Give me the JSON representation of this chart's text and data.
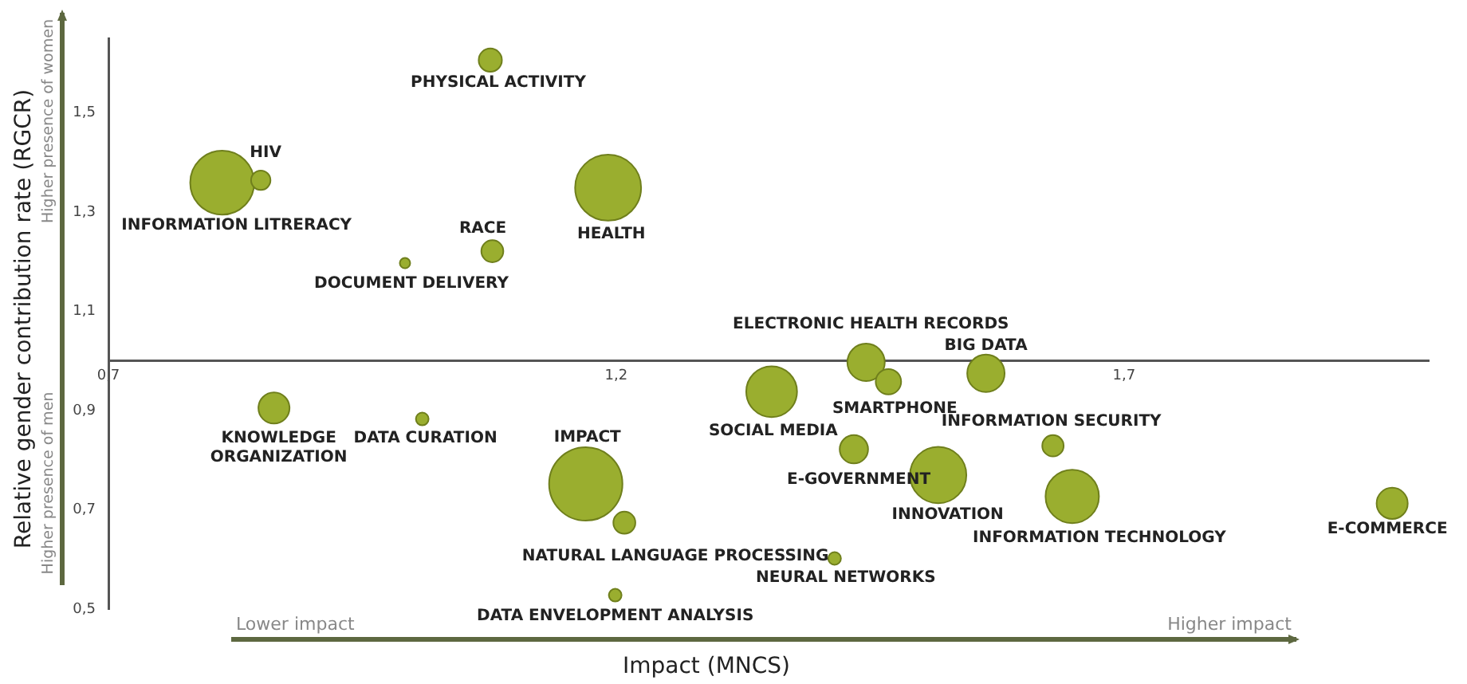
{
  "chart_data": {
    "type": "bubble",
    "xlabel": "Impact (MNCS)",
    "ylabel": "Relative gender contribution rate (RGCR)",
    "x": [
      1.076,
      0.812,
      0.85,
      1.192,
      1.078,
      0.992,
      1.446,
      1.468,
      1.564,
      1.353,
      1.434,
      1.63,
      1.517,
      1.649,
      1.964,
      1.415,
      0.863,
      1.009,
      1.17,
      1.208,
      1.199
    ],
    "values": [
      1.606,
      1.359,
      1.364,
      1.349,
      1.221,
      1.197,
      0.997,
      0.958,
      0.975,
      0.938,
      0.822,
      0.829,
      0.77,
      0.727,
      0.713,
      0.602,
      0.905,
      0.883,
      0.752,
      0.674,
      0.528
    ],
    "sizes": [
      0.1,
      0.76,
      0.07,
      0.81,
      0.09,
      0.02,
      0.26,
      0.12,
      0.26,
      0.48,
      0.15,
      0.085,
      0.59,
      0.53,
      0.18,
      0.03,
      0.18,
      0.03,
      1,
      0.09,
      0.03
    ],
    "color": "#9aae2f",
    "marker": "circle",
    "grid": false,
    "legend": false,
    "xlim": [
      0.7,
      2.0
    ],
    "xticks": [
      {
        "value": 0.7,
        "label": "0,7"
      },
      {
        "value": 1.2,
        "label": "1,2"
      },
      {
        "value": 1.7,
        "label": "1,7"
      }
    ],
    "ylim": [
      0.5,
      1.65
    ],
    "yticks": [
      {
        "value": 0.5,
        "label": "0,5"
      },
      {
        "value": 0.7,
        "label": "0,7"
      },
      {
        "value": 0.9,
        "label": "0,9"
      },
      {
        "value": 1.1,
        "label": "1,1"
      },
      {
        "value": 1.3,
        "label": "1,3"
      },
      {
        "value": 1.5,
        "label": "1,5"
      }
    ],
    "annotations": [
      "Higher presence of women",
      "Higher presence of men",
      "Lower impact",
      "Higher impact",
      {
        "text": "PHYSICAL ACTIVITY",
        "x": 1.076,
        "y": 1.606
      },
      {
        "text": "INFORMATION LITRERACY",
        "x": 0.812,
        "y": 1.359
      },
      {
        "text": "HIV",
        "x": 0.85,
        "y": 1.364
      },
      {
        "text": "HEALTH",
        "x": 1.192,
        "y": 1.349
      },
      {
        "text": "RACE",
        "x": 1.078,
        "y": 1.221
      },
      {
        "text": "DOCUMENT DELIVERY",
        "x": 0.992,
        "y": 1.197
      },
      {
        "text": "ELECTRONIC HEALTH RECORDS",
        "x": 1.446,
        "y": 0.997
      },
      {
        "text": "SMARTPHONE",
        "x": 1.468,
        "y": 0.958
      },
      {
        "text": "BIG DATA",
        "x": 1.564,
        "y": 0.975
      },
      {
        "text": "SOCIAL MEDIA",
        "x": 1.353,
        "y": 0.938
      },
      {
        "text": "E-GOVERNMENT",
        "x": 1.434,
        "y": 0.822
      },
      {
        "text": "INFORMATION SECURITY",
        "x": 1.63,
        "y": 0.829
      },
      {
        "text": "INNOVATION",
        "x": 1.517,
        "y": 0.77
      },
      {
        "text": "INFORMATION TECHNOLOGY",
        "x": 1.649,
        "y": 0.727
      },
      {
        "text": "E-COMMERCE",
        "x": 1.964,
        "y": 0.713
      },
      {
        "text": "NEURAL NETWORKS",
        "x": 1.415,
        "y": 0.602
      },
      {
        "text": "KNOWLEDGE\nORGANIZATION",
        "x": 0.863,
        "y": 0.905
      },
      {
        "text": "DATA CURATION",
        "x": 1.009,
        "y": 0.883
      },
      {
        "text": "IMPACT",
        "x": 1.17,
        "y": 0.752
      },
      {
        "text": "NATURAL LANGUAGE PROCESSING",
        "x": 1.208,
        "y": 0.674
      },
      {
        "text": "DATA ENVELOPMENT ANALYSIS",
        "x": 1.199,
        "y": 0.528
      }
    ]
  }
}
